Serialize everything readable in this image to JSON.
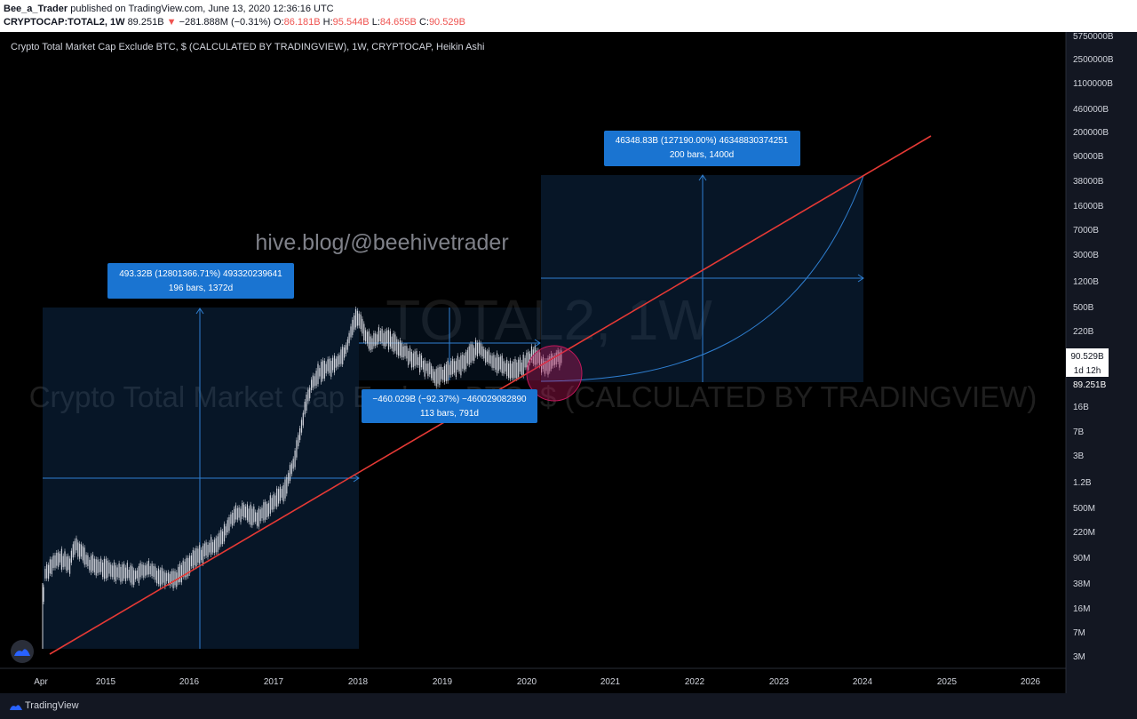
{
  "header": {
    "author": "Bee_a_Trader",
    "published": "published on TradingView.com, June 13, 2020 12:36:16 UTC",
    "symbol": "CRYPTOCAP:TOTAL2, 1W",
    "price": "89.251B",
    "change": "−281.888M (−0.31%)",
    "o_label": "O:",
    "o": "86.181B",
    "h_label": "H:",
    "h": "95.544B",
    "l_label": "L:",
    "l": "84.655B",
    "c_label": "C:",
    "c": "90.529B",
    "colors": {
      "down": "#ef5350"
    }
  },
  "footer": {
    "brand": "TradingView"
  },
  "chart_data": {
    "type": "candlestick",
    "title": "Crypto Total Market Cap Exclude BTC, $ (CALCULATED BY TRADINGVIEW), 1W, CRYPTOCAP, Heikin Ashi",
    "watermark_symbol": "TOTAL2, 1W",
    "watermark_name": "Crypto Total Market Cap Exclude BTC, $ (CALCULATED BY TRADINGVIEW)",
    "overlay_text": "hive.blog/@beehivetrader",
    "y_scale": "log",
    "x_ticks": [
      "Apr",
      "2015",
      "2016",
      "2017",
      "2018",
      "2019",
      "2020",
      "2021",
      "2022",
      "2023",
      "2024",
      "2025",
      "2026"
    ],
    "y_ticks": [
      "5750000B",
      "2500000B",
      "1100000B",
      "460000B",
      "200000B",
      "90000B",
      "38000B",
      "16000B",
      "7000B",
      "3000B",
      "1200B",
      "500B",
      "220B",
      "16B",
      "7B",
      "3B",
      "1.2B",
      "500M",
      "220M",
      "90M",
      "38M",
      "16M",
      "7M",
      "3M"
    ],
    "last_price_label": "90.529B",
    "countdown_label": "1d 12h",
    "prev_price_label": "89.251B",
    "measurements": [
      {
        "line1": "493.32B (12801366.71%) 493320239641",
        "line2": "196 bars, 1372d"
      },
      {
        "line1": "−460.029B (−92.37%) −460029082890",
        "line2": "113 bars, 791d"
      },
      {
        "line1": "46348.83B (127190.00%) 46348830374251",
        "line2": "200 bars, 1400d"
      }
    ],
    "colors": {
      "trendline": "#e53935",
      "measure_box": "#1a74d1",
      "candle": "#d1d4dc",
      "circle": "#c2185b"
    }
  }
}
